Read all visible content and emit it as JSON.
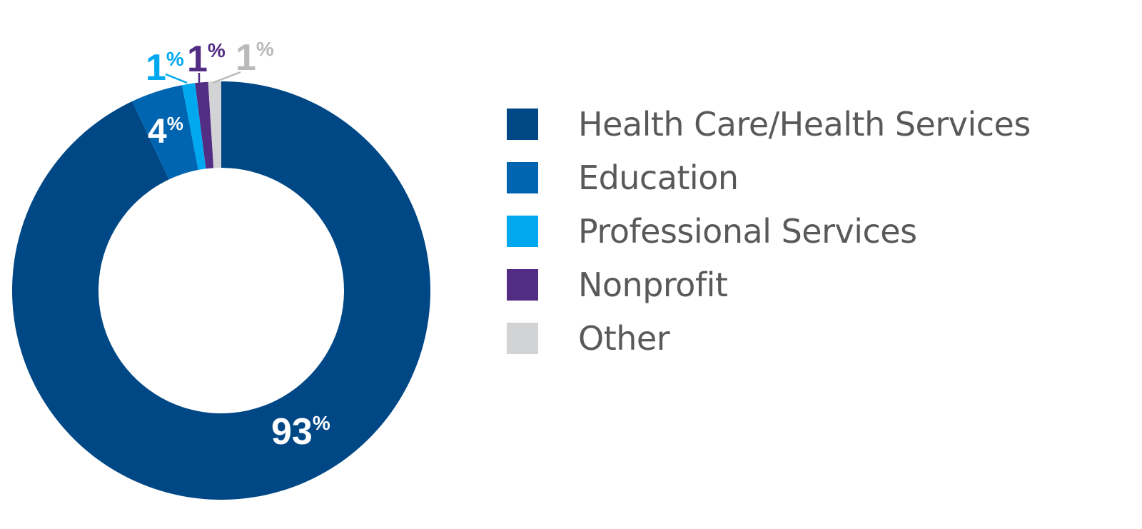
{
  "chart_data": {
    "type": "pie",
    "donut": true,
    "categories": [
      "Health Care/Health Services",
      "Education",
      "Professional Services",
      "Nonprofit",
      "Other"
    ],
    "values": [
      93,
      4,
      1,
      1,
      1
    ],
    "data_labels": [
      "93",
      "4",
      "1",
      "1",
      "1"
    ],
    "percent_sign": "%",
    "colors": [
      "#004785",
      "#0065b0",
      "#00a9ef",
      "#532c84",
      "#d1d3d4"
    ],
    "label_colors": [
      "#ffffff",
      "#ffffff",
      "#00a9ef",
      "#532c84",
      "#b8bab8"
    ],
    "legend_position": "right"
  },
  "legend": {
    "items": [
      {
        "label": "Health Care/Health Services",
        "color": "#004785"
      },
      {
        "label": "Education",
        "color": "#0065b0"
      },
      {
        "label": "Professional Services",
        "color": "#00a9ef"
      },
      {
        "label": "Nonprofit",
        "color": "#532c84"
      },
      {
        "label": "Other",
        "color": "#d1d3d4"
      }
    ]
  }
}
